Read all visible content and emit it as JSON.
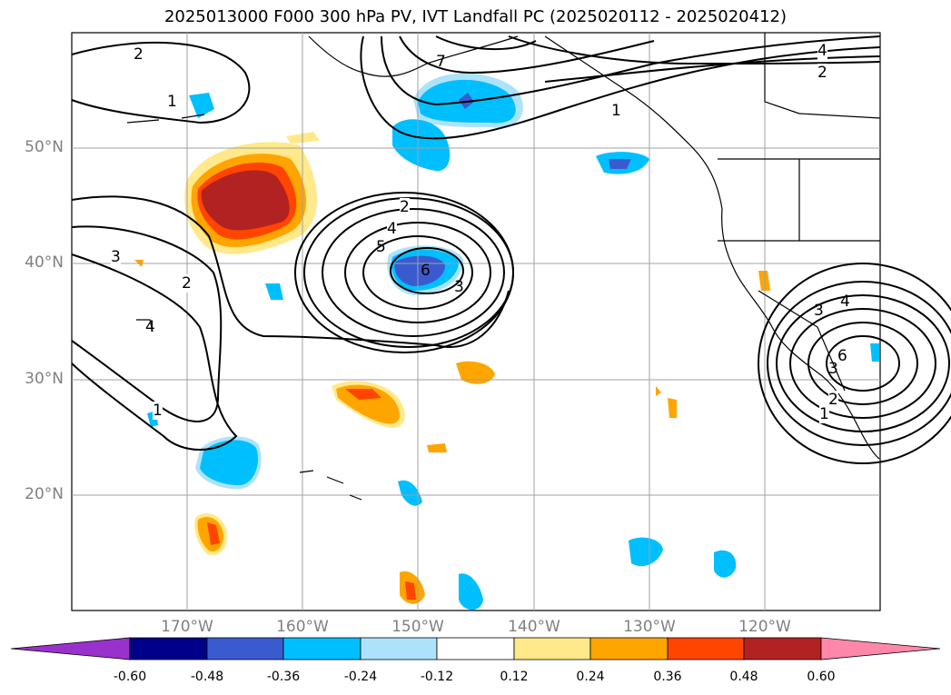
{
  "title": "2025013000 F000 300 hPa PV, IVT Landfall PC (2025020112 - 2025020412)",
  "map": {
    "lat_labels": [
      "50°N",
      "40°N",
      "30°N",
      "20°N"
    ],
    "lon_labels": [
      "170°W",
      "160°W",
      "150°W",
      "140°W",
      "130°W",
      "120°W"
    ],
    "extent": {
      "lon_min": -180,
      "lon_max": -110,
      "lat_min": 10,
      "lat_max": 60
    },
    "grid": true
  },
  "contour_labels": [
    "2",
    "1",
    "7",
    "4",
    "2",
    "2",
    "4",
    "5",
    "6",
    "3",
    "3",
    "2",
    "4",
    "1",
    "1",
    "3",
    "4",
    "6",
    "3",
    "2",
    "1"
  ],
  "colorbar": {
    "levels": [
      "-0.60",
      "-0.48",
      "-0.36",
      "-0.24",
      "-0.12",
      "0.12",
      "0.24",
      "0.36",
      "0.48",
      "0.60"
    ],
    "colors": [
      "#9932CC",
      "#00008B",
      "#3A5BD0",
      "#00BFFF",
      "#ADE3FA",
      "#FFFFFF",
      "#FFE98A",
      "#FFA500",
      "#FF4500",
      "#B22222",
      "#FF88AA"
    ],
    "extend": "both"
  }
}
